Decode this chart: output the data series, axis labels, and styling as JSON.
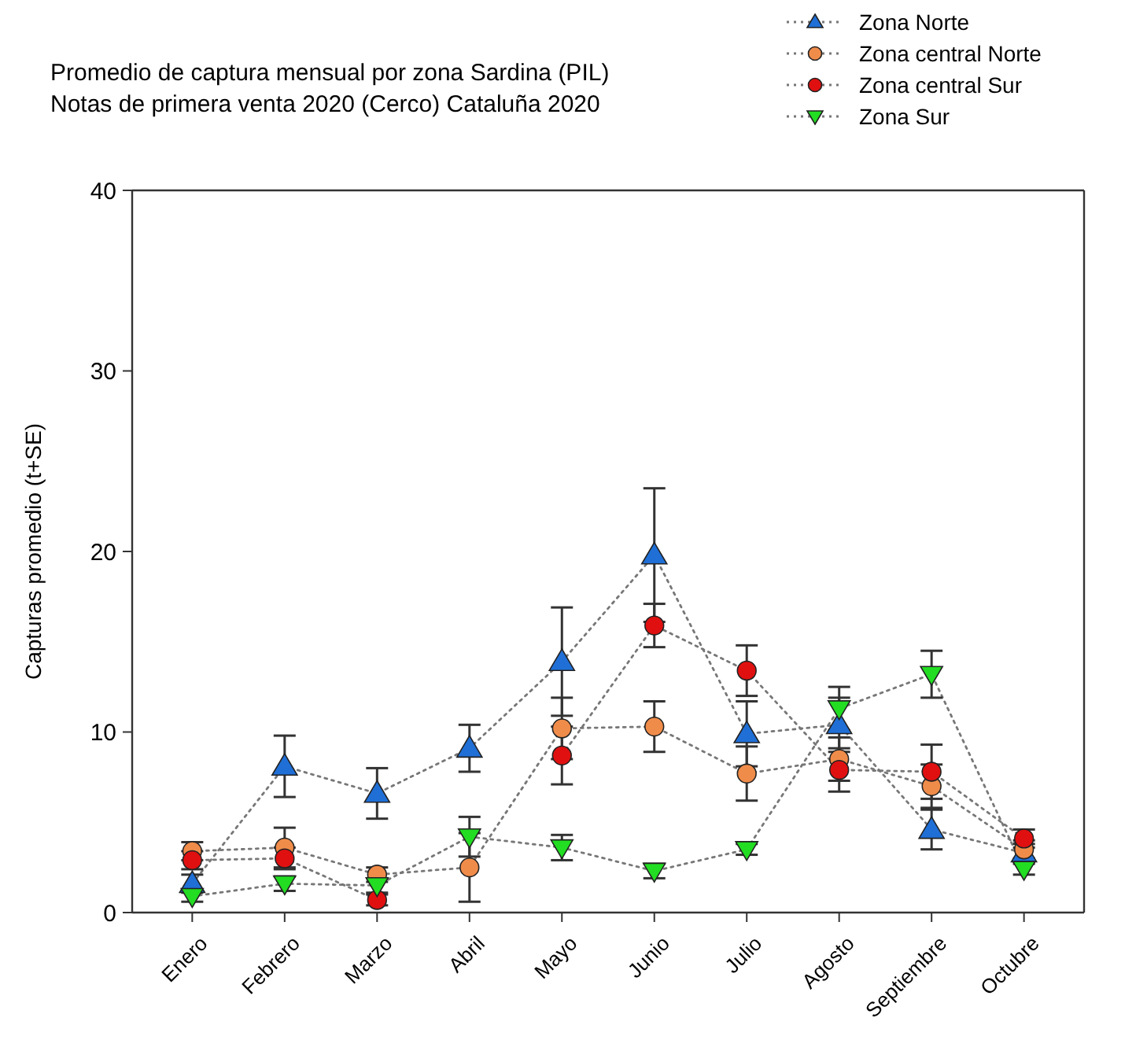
{
  "chart_data": {
    "type": "line",
    "title": "Promedio de captura mensual por zona Sardina (PIL)",
    "subtitle": "Notas de primera venta 2020 (Cerco) Cataluña 2020",
    "ylabel": "Capturas promedio (t+SE)",
    "categories": [
      "Enero",
      "Febrero",
      "Marzo",
      "Abril",
      "Mayo",
      "Junio",
      "Julio",
      "Agosto",
      "Septiembre",
      "Octubre"
    ],
    "ylim": [
      0,
      40
    ],
    "yticks": [
      0,
      10,
      20,
      30,
      40
    ],
    "grid": false,
    "legend": "top right",
    "line_style": "dotted",
    "series": [
      {
        "name": "Zona Norte",
        "color": "#1f6fd6",
        "marker": "triangle",
        "values": [
          1.6,
          8.1,
          6.6,
          9.1,
          13.9,
          19.8,
          9.9,
          10.4,
          4.6,
          3.3
        ],
        "errors": [
          0.5,
          1.7,
          1.4,
          1.3,
          3,
          3.7,
          1.8,
          1.5,
          1.1,
          0.5
        ]
      },
      {
        "name": "Zona central Norte",
        "color": "#f08c4a",
        "marker": "circle",
        "values": [
          3.4,
          3.6,
          2.1,
          2.5,
          10.2,
          10.3,
          7.7,
          8.5,
          7,
          3.5
        ],
        "errors": [
          0.5,
          1.1,
          0.4,
          1.9,
          1.7,
          1.4,
          1.5,
          1.2,
          1.2,
          0.5
        ]
      },
      {
        "name": "Zona central Sur",
        "color": "#e01010",
        "marker": "circle",
        "values": [
          2.9,
          3,
          0.7,
          null,
          8.7,
          15.9,
          13.4,
          7.9,
          7.8,
          4.1
        ],
        "errors": [
          0.5,
          0.6,
          0.3,
          null,
          1.6,
          1.2,
          1.4,
          1.2,
          1.5,
          0.5
        ]
      },
      {
        "name": "Zona Sur",
        "color": "#22dd22",
        "marker": "triangle-down",
        "values": [
          0.9,
          1.6,
          1.5,
          4.2,
          3.6,
          2.3,
          3.5,
          11.3,
          13.2,
          2.4
        ],
        "errors": [
          0.3,
          0.4,
          0.4,
          1.1,
          0.7,
          0.4,
          0.3,
          1.2,
          1.3,
          0.3
        ]
      }
    ]
  }
}
